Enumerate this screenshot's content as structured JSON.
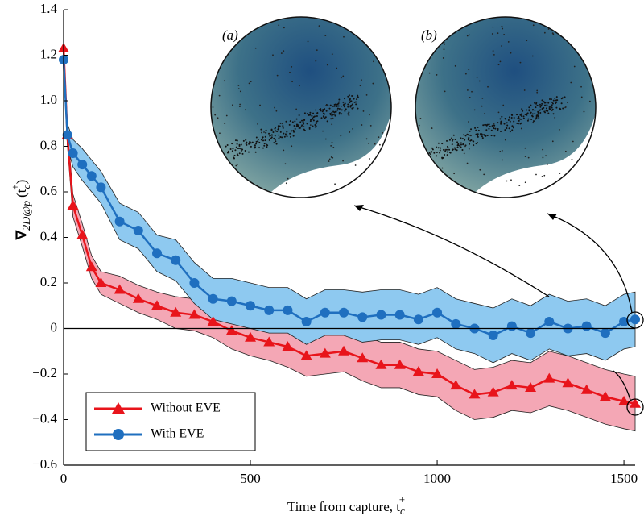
{
  "chart_data": {
    "type": "line",
    "xlabel_parts": [
      "Time from capture, t",
      "c",
      "+"
    ],
    "ylabel_parts": [
      "∇",
      "2D@p",
      "(t",
      "c",
      "+",
      ")"
    ],
    "annotations": [
      "(a)",
      "(b)"
    ],
    "x": [
      0,
      10,
      25,
      50,
      75,
      100,
      150,
      200,
      250,
      300,
      350,
      400,
      450,
      500,
      550,
      600,
      650,
      700,
      750,
      800,
      850,
      900,
      950,
      1000,
      1050,
      1100,
      1150,
      1200,
      1250,
      1300,
      1350,
      1400,
      1450,
      1500,
      1530
    ],
    "series": [
      {
        "name": "Without EVE",
        "color": "#e8141b",
        "band_color": "#f4a7b5",
        "marker": "triangle",
        "values": [
          1.23,
          0.85,
          0.54,
          0.41,
          0.27,
          0.2,
          0.17,
          0.13,
          0.1,
          0.07,
          0.06,
          0.03,
          -0.01,
          -0.04,
          -0.06,
          -0.08,
          -0.12,
          -0.11,
          -0.1,
          -0.13,
          -0.16,
          -0.16,
          -0.19,
          -0.2,
          -0.25,
          -0.29,
          -0.28,
          -0.25,
          -0.26,
          -0.22,
          -0.24,
          -0.27,
          -0.3,
          -0.32,
          -0.33
        ],
        "errors": [
          0.02,
          0.04,
          0.05,
          0.05,
          0.05,
          0.05,
          0.06,
          0.06,
          0.06,
          0.07,
          0.07,
          0.07,
          0.08,
          0.08,
          0.08,
          0.09,
          0.09,
          0.09,
          0.09,
          0.1,
          0.1,
          0.1,
          0.1,
          0.1,
          0.11,
          0.11,
          0.11,
          0.11,
          0.11,
          0.12,
          0.12,
          0.12,
          0.12,
          0.12,
          0.12
        ]
      },
      {
        "name": "With EVE",
        "color": "#1f6fbf",
        "band_color": "#8ec9f0",
        "marker": "circle",
        "values": [
          1.18,
          0.85,
          0.77,
          0.72,
          0.67,
          0.62,
          0.47,
          0.43,
          0.33,
          0.3,
          0.2,
          0.13,
          0.12,
          0.1,
          0.08,
          0.08,
          0.03,
          0.07,
          0.07,
          0.05,
          0.06,
          0.06,
          0.04,
          0.07,
          0.02,
          0.0,
          -0.03,
          0.01,
          -0.02,
          0.03,
          0.0,
          0.01,
          -0.02,
          0.03,
          0.04
        ],
        "errors": [
          0.02,
          0.05,
          0.06,
          0.07,
          0.07,
          0.07,
          0.08,
          0.08,
          0.08,
          0.09,
          0.09,
          0.09,
          0.1,
          0.1,
          0.1,
          0.1,
          0.1,
          0.1,
          0.1,
          0.11,
          0.11,
          0.11,
          0.11,
          0.11,
          0.11,
          0.11,
          0.12,
          0.12,
          0.12,
          0.12,
          0.12,
          0.12,
          0.12,
          0.12,
          0.12
        ]
      }
    ],
    "xlim": [
      0,
      1530
    ],
    "ylim": [
      -0.6,
      1.4
    ],
    "xticks": [
      0,
      500,
      1000,
      1500
    ],
    "yticks": [
      {
        "value": -0.6,
        "label": "−0.6"
      },
      {
        "value": -0.4,
        "label": "−0.4"
      },
      {
        "value": -0.2,
        "label": "−0.2"
      },
      0,
      0.2,
      0.4,
      0.6,
      0.8,
      {
        "value": 1,
        "label": "1.0"
      },
      1.2,
      1.4
    ],
    "legend": "lower left"
  }
}
